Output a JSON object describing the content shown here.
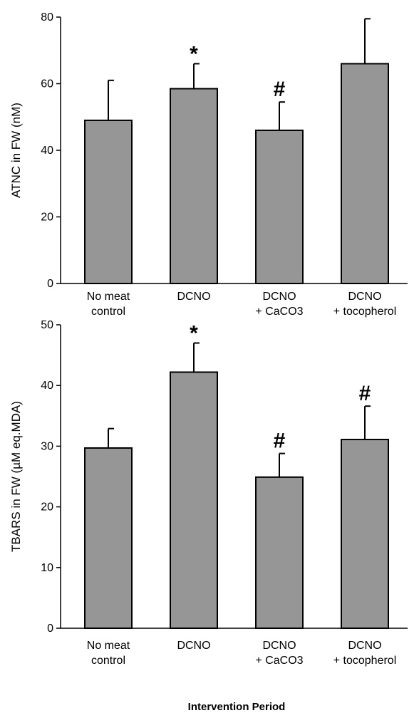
{
  "figure": {
    "xlabel": "Intervention Period"
  },
  "chart_data": [
    {
      "type": "bar",
      "categories": [
        [
          "No meat",
          "control"
        ],
        [
          "DCNO"
        ],
        [
          "DCNO",
          "+ CaCO3"
        ],
        [
          "DCNO",
          "+ tocopherol"
        ]
      ],
      "values": [
        49,
        58.5,
        46,
        66
      ],
      "error": [
        12,
        7.5,
        8.5,
        13.5
      ],
      "markers": [
        "",
        "*",
        "#",
        ""
      ],
      "ylabel": "ATNC in FW (nM)",
      "ylim": [
        0,
        80
      ],
      "yticks": [
        0,
        20,
        40,
        60,
        80
      ],
      "bar_color": "#969696"
    },
    {
      "type": "bar",
      "categories": [
        [
          "No meat",
          "control"
        ],
        [
          "DCNO"
        ],
        [
          "DCNO",
          "+ CaCO3"
        ],
        [
          "DCNO",
          "+ tocopherol"
        ]
      ],
      "values": [
        29.7,
        42.2,
        24.9,
        31.1
      ],
      "error": [
        3.2,
        4.8,
        3.9,
        5.5
      ],
      "markers": [
        "",
        "*",
        "#",
        "#"
      ],
      "ylabel": "TBARS in FW (µM eq.MDA)",
      "ylim": [
        0,
        50
      ],
      "yticks": [
        0,
        10,
        20,
        30,
        40,
        50
      ],
      "bar_color": "#969696"
    }
  ]
}
